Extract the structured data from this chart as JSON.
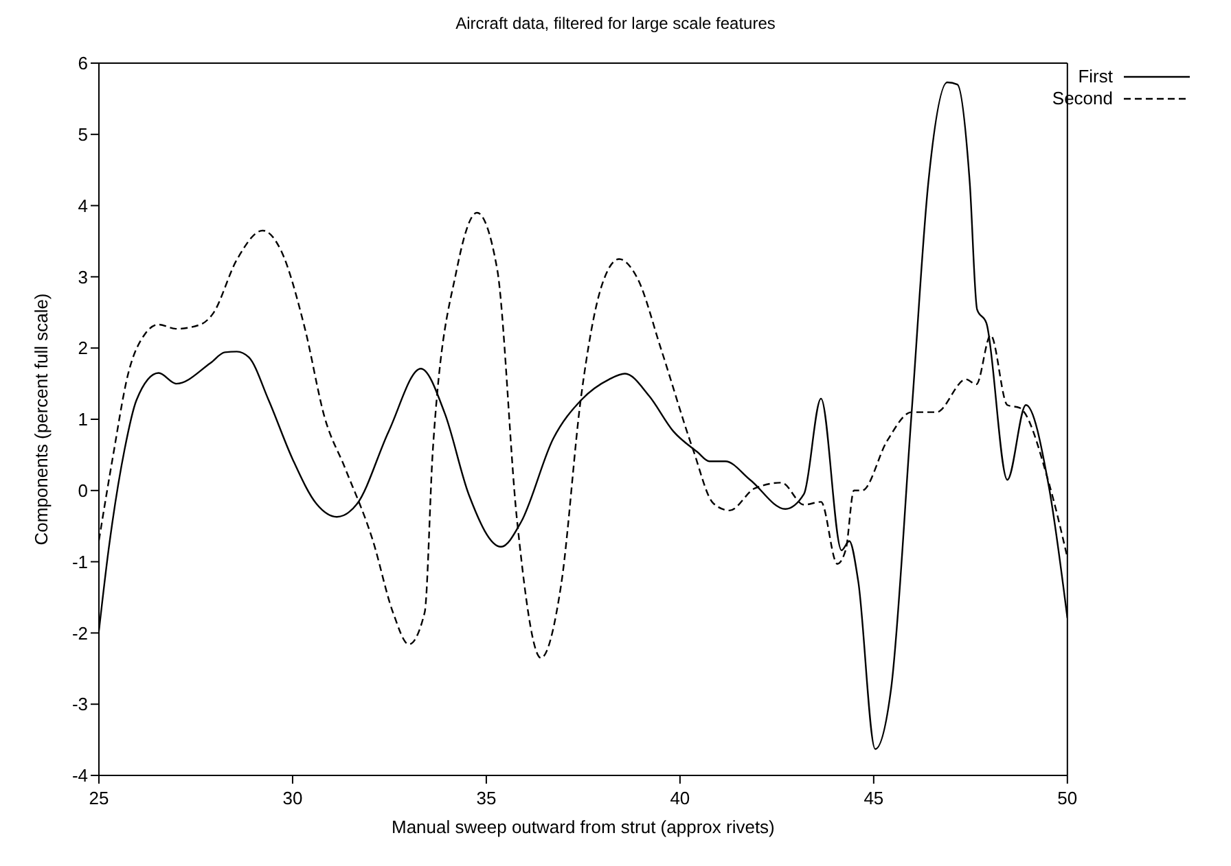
{
  "chart_data": {
    "type": "line",
    "title": "Aircraft data, filtered for large scale features",
    "xlabel": "Manual sweep outward from strut (approx rivets)",
    "ylabel": "Components (percent full scale)",
    "xlim": [
      25,
      50
    ],
    "xticks": [
      25,
      30,
      35,
      40,
      45,
      50
    ],
    "ylim": [
      -4,
      6
    ],
    "yticks": [
      -4,
      -3,
      -2,
      -1,
      0,
      1,
      2,
      3,
      4,
      5,
      6
    ],
    "legend": "top right",
    "grid": false,
    "marker": "none",
    "series": [
      {
        "name": "First",
        "color": "#000000",
        "line_style": "solid",
        "x": [
          25,
          25.25,
          25.66,
          25.97,
          26.54,
          27.0,
          27.88,
          28.25,
          28.56,
          28.87,
          29.38,
          30.0,
          30.62,
          31.14,
          31.66,
          32.48,
          33.31,
          33.93,
          34.55,
          35.38,
          35.9,
          36.73,
          37.45,
          38.17,
          38.58,
          39.2,
          39.83,
          40.45,
          40.76,
          41.17,
          41.81,
          42.72,
          43.2,
          43.64,
          44.17,
          44.37,
          44.6,
          45.04,
          45.45,
          45.98,
          46.41,
          46.9,
          47.16,
          47.48,
          47.67,
          47.91,
          48.45,
          48.93,
          49.52,
          50
        ],
        "values": [
          -1.97,
          -0.83,
          0.57,
          1.27,
          1.65,
          1.5,
          1.79,
          1.94,
          1.95,
          1.87,
          1.27,
          0.44,
          -0.19,
          -0.37,
          -0.19,
          0.83,
          1.71,
          1.08,
          -0.06,
          -0.79,
          -0.44,
          0.73,
          1.27,
          1.56,
          1.64,
          1.33,
          0.83,
          0.54,
          0.41,
          0.41,
          0.15,
          -0.26,
          -0.05,
          1.29,
          -0.84,
          -0.71,
          -1.27,
          -3.63,
          -2.78,
          1.1,
          4.32,
          5.73,
          5.7,
          4.32,
          2.54,
          2.35,
          0.15,
          1.2,
          0.06,
          -1.79
        ]
      },
      {
        "name": "Second",
        "color": "#000000",
        "line_style": "dashed",
        "x": [
          25,
          25.35,
          25.76,
          26.18,
          26.54,
          27.0,
          27.62,
          27.94,
          28.56,
          29.23,
          29.7,
          30.31,
          30.83,
          31.35,
          32.07,
          32.59,
          33.0,
          33.41,
          33.62,
          34.24,
          34.76,
          35.28,
          35.79,
          36.41,
          36.93,
          37.45,
          37.97,
          38.43,
          38.9,
          39.52,
          40.34,
          40.86,
          41.28,
          41.93,
          42.62,
          43.2,
          43.64,
          44.06,
          44.28,
          44.49,
          44.7,
          45.35,
          45.98,
          46.62,
          47.38,
          47.65,
          48.02,
          48.45,
          48.77,
          49.52,
          50
        ],
        "values": [
          -0.7,
          0.44,
          1.65,
          2.19,
          2.33,
          2.27,
          2.33,
          2.48,
          3.24,
          3.65,
          3.37,
          2.29,
          1.02,
          0.32,
          -0.7,
          -1.71,
          -2.16,
          -1.71,
          0.57,
          3.11,
          3.9,
          3.11,
          -0.4,
          -2.35,
          -1.33,
          1.33,
          2.86,
          3.25,
          2.98,
          1.97,
          0.57,
          -0.18,
          -0.28,
          0.03,
          0.11,
          -0.2,
          -0.16,
          -1.03,
          -0.83,
          0.0,
          0.0,
          0.7,
          1.1,
          1.1,
          1.56,
          1.49,
          2.18,
          1.2,
          1.16,
          0.11,
          -0.94
        ]
      }
    ]
  }
}
